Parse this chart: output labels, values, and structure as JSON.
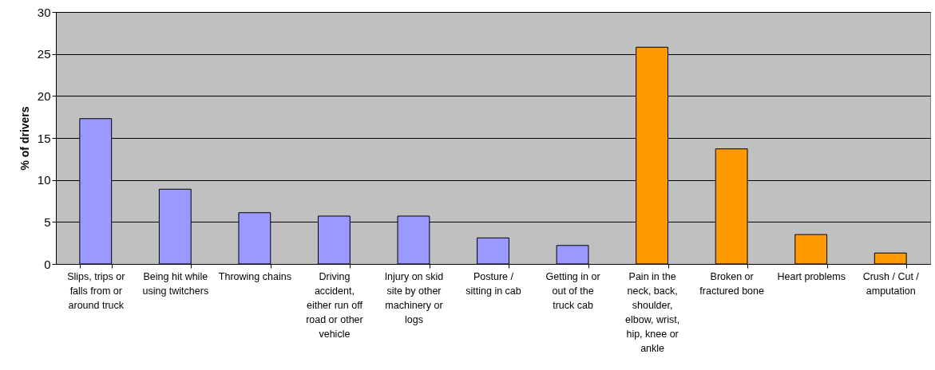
{
  "chart_data": {
    "type": "bar",
    "ylabel": "% of drivers",
    "categories": [
      "Slips, trips or falls from or around truck",
      "Being hit while using twitchers",
      "Throwing chains",
      "Driving accident, either run off road or other vehicle",
      "Injury on skid site by other machinery or logs",
      "Posture / sitting in cab",
      "Getting in or out of the truck cab",
      "Pain in the neck, back, shoulder, elbow, wrist, hip, knee or ankle",
      "Broken or fractured bone",
      "Heart problems",
      "Crush / Cut / amputation"
    ],
    "values": [
      17.3,
      8.9,
      6.1,
      5.7,
      5.7,
      3.1,
      2.2,
      25.8,
      13.7,
      3.5,
      1.3
    ],
    "colors": [
      "#9999ff",
      "#9999ff",
      "#9999ff",
      "#9999ff",
      "#9999ff",
      "#9999ff",
      "#9999ff",
      "#ff9900",
      "#ff9900",
      "#ff9900",
      "#ff9900"
    ],
    "ylim": [
      0,
      30
    ],
    "yticks": [
      0,
      5,
      10,
      15,
      20,
      25,
      30
    ],
    "grid": "y"
  }
}
